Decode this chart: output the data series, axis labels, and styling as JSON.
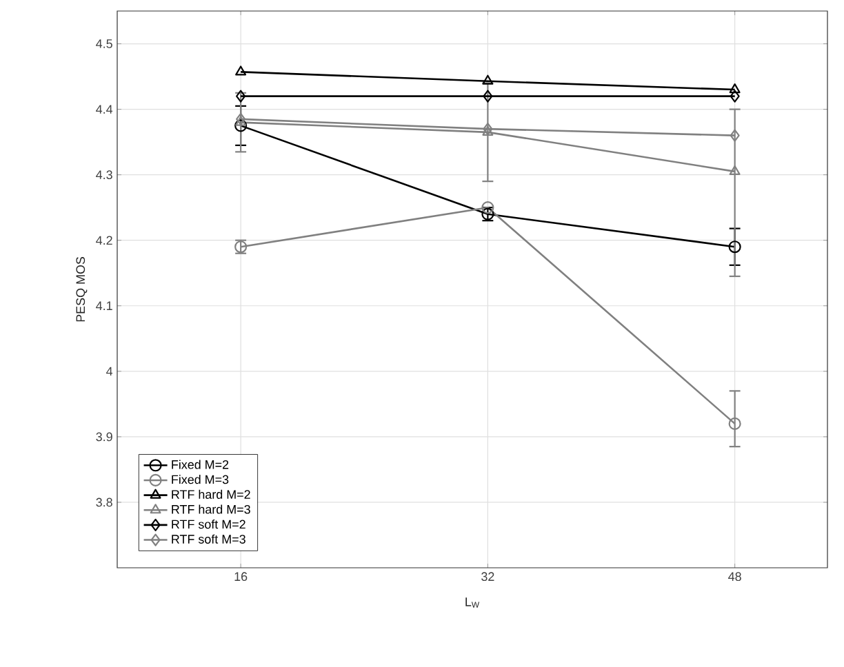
{
  "chart_data": {
    "type": "line",
    "xlabel": "L$_{W}$",
    "ylabel": "PESQ MOS",
    "x": [
      16,
      32,
      48
    ],
    "xlim": [
      8,
      54
    ],
    "xticks": [
      16,
      32,
      48
    ],
    "ylim": [
      3.7,
      4.55
    ],
    "yticks": [
      3.8,
      3.9,
      4,
      4.1,
      4.2,
      4.3,
      4.4,
      4.5
    ],
    "grid": true,
    "legend": "bottom left",
    "line_style": "solid",
    "series": [
      {
        "name": "Fixed M=2",
        "color": "#000000",
        "marker": "circle",
        "values": [
          4.375,
          4.24,
          4.19
        ],
        "errors": [
          0.03,
          0.01,
          0.028
        ]
      },
      {
        "name": "Fixed M=3",
        "color": "#808080",
        "marker": "circle",
        "values": [
          4.19,
          4.25,
          3.92
        ],
        "errors": [
          0.01,
          null,
          [
            3.885,
            3.97
          ]
        ]
      },
      {
        "name": "RTF hard M=2",
        "color": "#000000",
        "marker": "triangle",
        "values": [
          4.457,
          4.443,
          4.43
        ]
      },
      {
        "name": "RTF hard M=3",
        "color": "#808080",
        "marker": "triangle",
        "values": [
          4.38,
          4.365,
          4.305
        ],
        "errors": [
          0.045,
          0.075,
          [
            4.145,
            4.4
          ]
        ]
      },
      {
        "name": "RTF soft M=2",
        "color": "#000000",
        "marker": "diamond",
        "values": [
          4.42,
          4.42,
          4.42
        ]
      },
      {
        "name": "RTF soft M=3",
        "color": "#808080",
        "marker": "diamond",
        "values": [
          4.385,
          4.37,
          4.36
        ]
      }
    ]
  }
}
